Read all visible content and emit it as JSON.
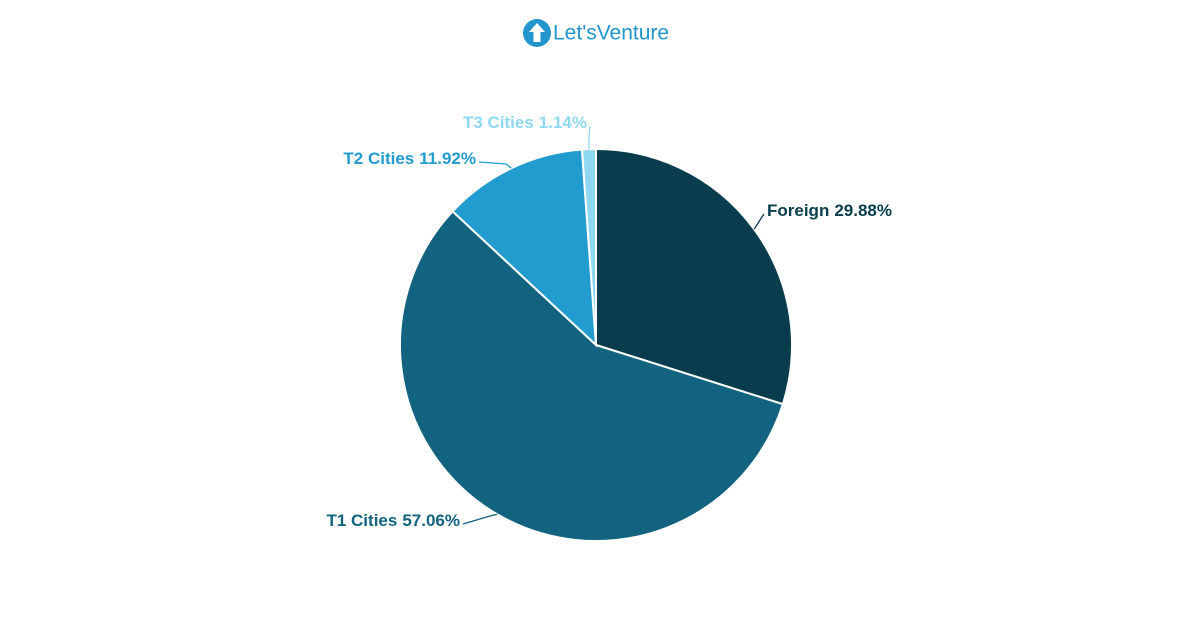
{
  "logo": "Let'sVenture",
  "chart_data": {
    "type": "pie",
    "categories": [
      "Foreign",
      "T1 Cities",
      "T2 Cities",
      "T3 Cities"
    ],
    "values": [
      29.88,
      57.06,
      11.92,
      1.14
    ],
    "value_labels": [
      "29.88%",
      "57.06%",
      "11.92%",
      "1.14%"
    ],
    "colors": [
      "#093d4d",
      "#11637f",
      "#229bce",
      "#8fd8f2"
    ]
  }
}
